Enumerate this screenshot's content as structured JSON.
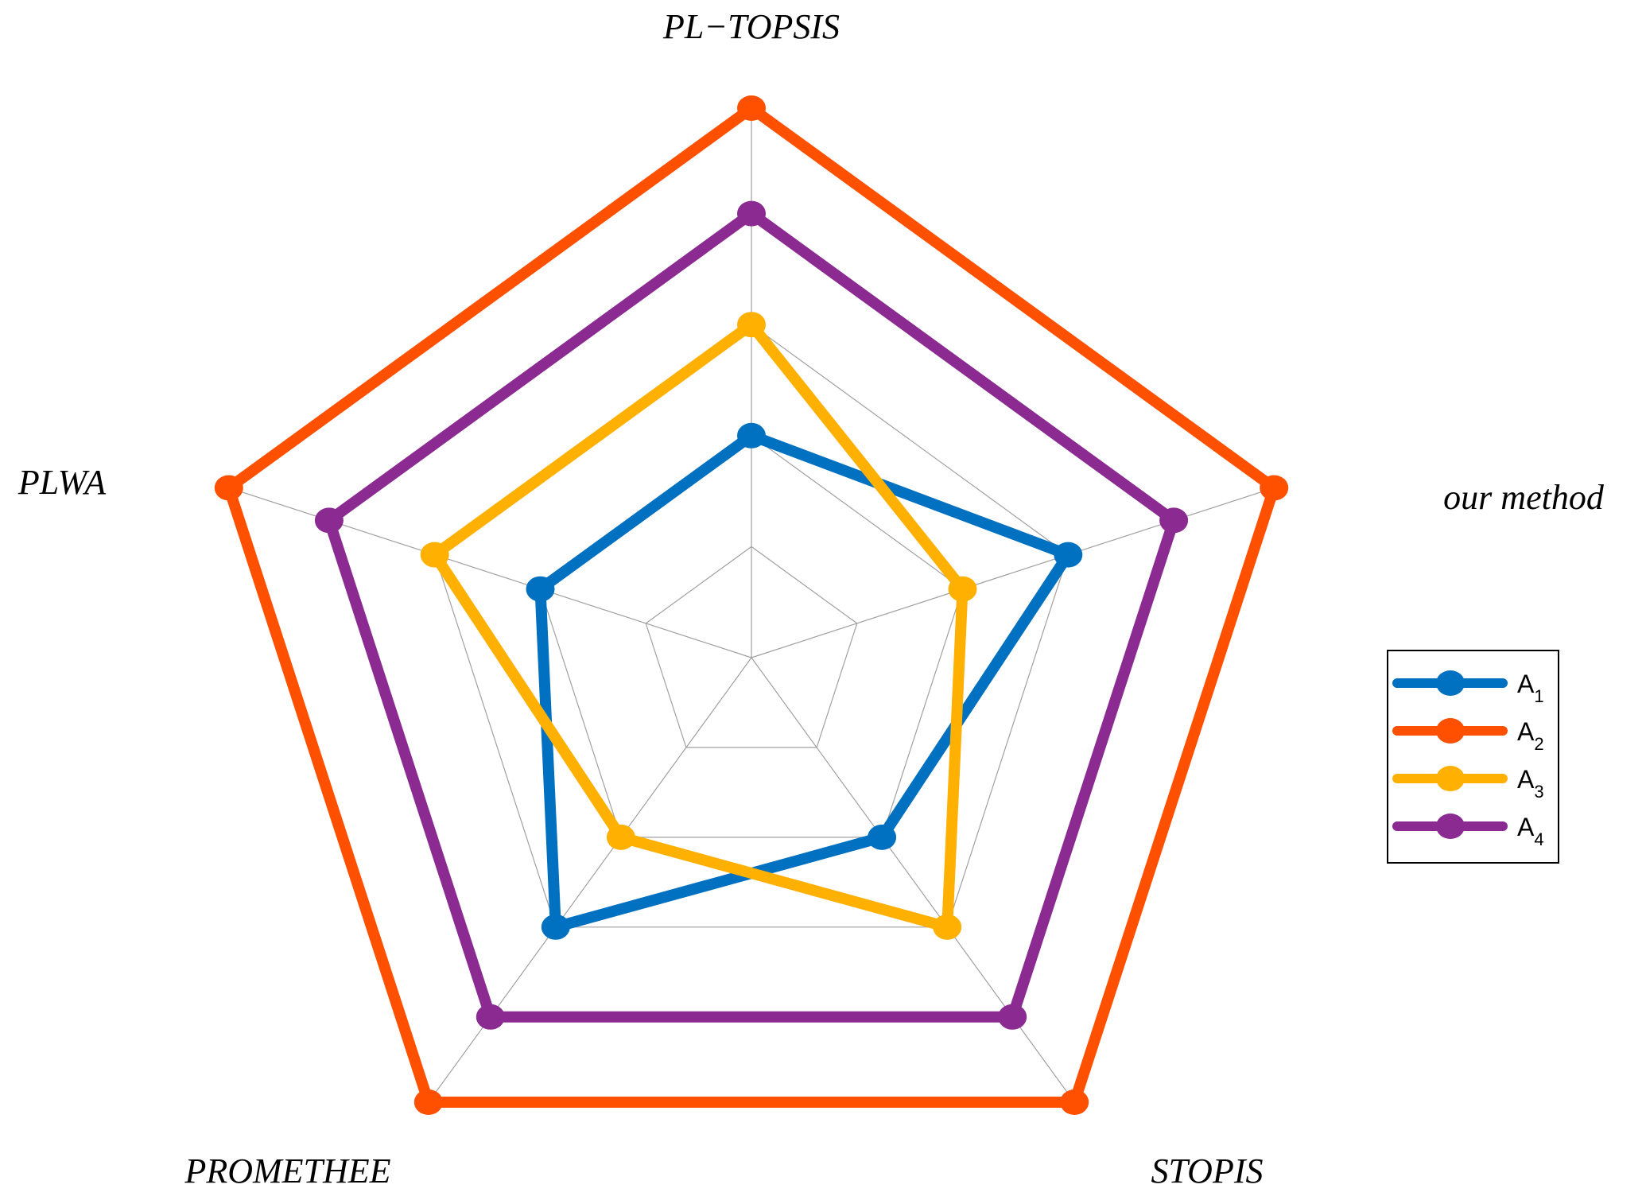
{
  "chart_data": {
    "type": "radar",
    "axes": [
      "PL−TOPSIS",
      "our method",
      "STOPIS",
      "PROMETHEE",
      "PLWA"
    ],
    "rmax": 5,
    "series": [
      {
        "name": "A",
        "sub": "1",
        "color": "#0070C0",
        "values": [
          2,
          3,
          2,
          3,
          2
        ]
      },
      {
        "name": "A",
        "sub": "2",
        "color": "#FF5000",
        "values": [
          4.95,
          4.95,
          4.95,
          4.95,
          4.95
        ]
      },
      {
        "name": "A",
        "sub": "3",
        "color": "#FFB000",
        "values": [
          3,
          2,
          3,
          2,
          3
        ]
      },
      {
        "name": "A",
        "sub": "4",
        "color": "#8B2A91",
        "values": [
          4,
          4,
          4,
          4,
          4
        ]
      }
    ],
    "grid_color": "#A0A0A0",
    "legend_position": "right"
  }
}
